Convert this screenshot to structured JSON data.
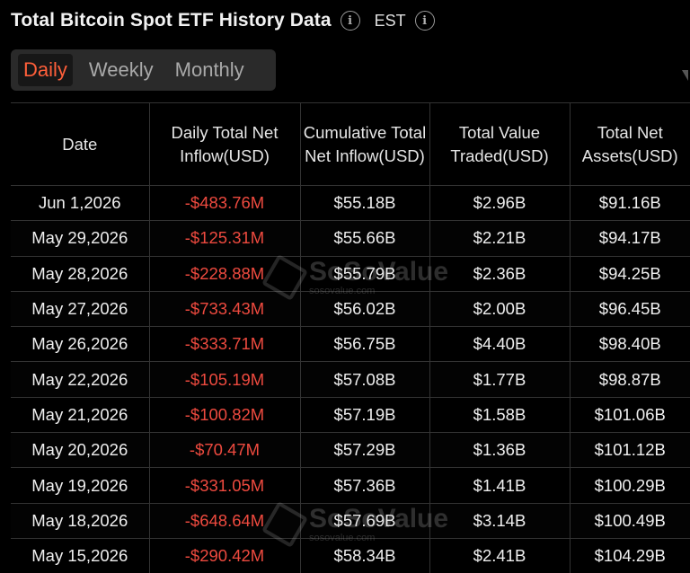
{
  "header": {
    "title": "Total Bitcoin Spot ETF History Data",
    "timezone": "EST"
  },
  "tabs": [
    {
      "label": "Daily",
      "active": true
    },
    {
      "label": "Weekly",
      "active": false
    },
    {
      "label": "Monthly",
      "active": false
    }
  ],
  "table": {
    "columns": [
      "Date",
      "Daily Total Net Inflow(USD)",
      "Cumulative Total Net Inflow(USD)",
      "Total Value Traded(USD)",
      "Total Net Assets(USD)"
    ],
    "rows": [
      [
        "Jun 1,2026",
        "-$483.76M",
        "$55.18B",
        "$2.96B",
        "$91.16B"
      ],
      [
        "May 29,2026",
        "-$125.31M",
        "$55.66B",
        "$2.21B",
        "$94.17B"
      ],
      [
        "May 28,2026",
        "-$228.88M",
        "$55.79B",
        "$2.36B",
        "$94.25B"
      ],
      [
        "May 27,2026",
        "-$733.43M",
        "$56.02B",
        "$2.00B",
        "$96.45B"
      ],
      [
        "May 26,2026",
        "-$333.71M",
        "$56.75B",
        "$4.40B",
        "$98.40B"
      ],
      [
        "May 22,2026",
        "-$105.19M",
        "$57.08B",
        "$1.77B",
        "$98.87B"
      ],
      [
        "May 21,2026",
        "-$100.82M",
        "$57.19B",
        "$1.58B",
        "$101.06B"
      ],
      [
        "May 20,2026",
        "-$70.47M",
        "$57.29B",
        "$1.36B",
        "$101.12B"
      ],
      [
        "May 19,2026",
        "-$331.05M",
        "$57.36B",
        "$1.41B",
        "$100.29B"
      ],
      [
        "May 18,2026",
        "-$648.64M",
        "$57.69B",
        "$3.14B",
        "$100.49B"
      ],
      [
        "May 15,2026",
        "-$290.42M",
        "$58.34B",
        "$2.41B",
        "$104.29B"
      ]
    ]
  },
  "watermark": {
    "name": "SoSoValue",
    "url": "sosovalue.com"
  },
  "colors": {
    "negative": "#ee4a3f",
    "active_tab": "#ff5f3a",
    "background": "#000000"
  },
  "icons": {
    "info": "info-circle-icon"
  }
}
